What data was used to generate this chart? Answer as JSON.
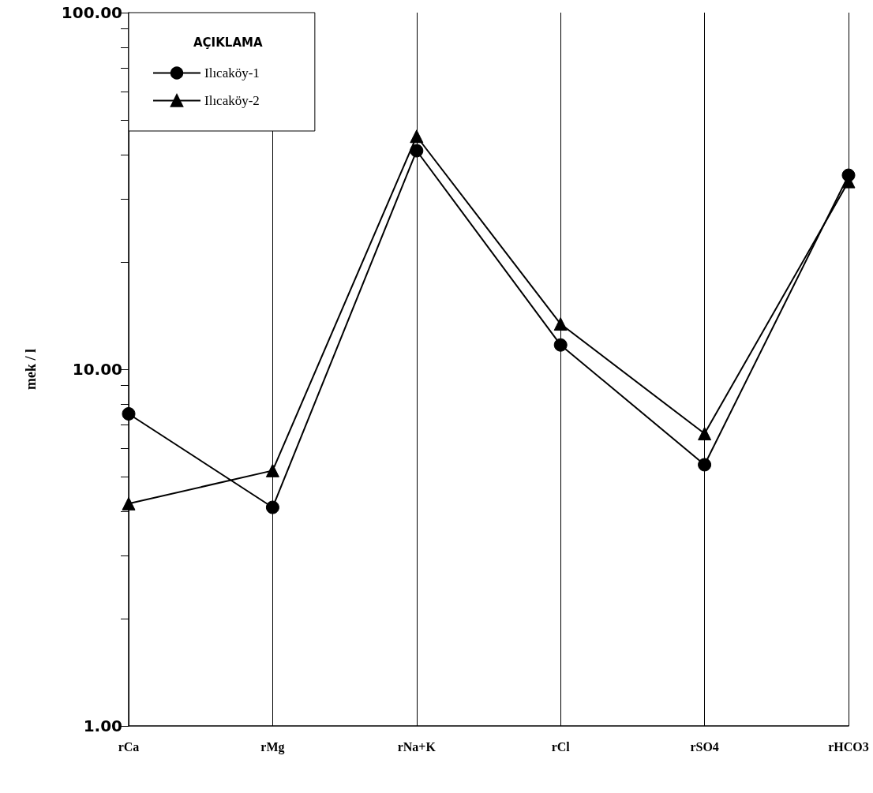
{
  "chart_data": {
    "type": "line",
    "ylabel": "mek / l",
    "legend_title": "AÇIKLAMA",
    "categories": [
      "rCa",
      "rMg",
      "rNa+K",
      "rCl",
      "rSO4",
      "rHCO3"
    ],
    "series": [
      {
        "name": "Ilıcaköy-1",
        "color": "#000000",
        "marker": "circle",
        "values": [
          7.5,
          4.1,
          41,
          11.7,
          5.4,
          35
        ]
      },
      {
        "name": "Ilıcaköy-2",
        "color": "#000000",
        "marker": "triangle",
        "values": [
          4.2,
          5.2,
          45,
          13.4,
          6.6,
          33.6
        ]
      }
    ],
    "log": "y",
    "ylim": [
      1,
      100
    ],
    "yticks": [
      {
        "value": 1,
        "label": "1.00"
      },
      {
        "value": 2,
        "label": null
      },
      {
        "value": 3,
        "label": null
      },
      {
        "value": 4,
        "label": null
      },
      {
        "value": 5,
        "label": null
      },
      {
        "value": 6,
        "label": null
      },
      {
        "value": 7,
        "label": null
      },
      {
        "value": 8,
        "label": null
      },
      {
        "value": 9,
        "label": null
      },
      {
        "value": 10,
        "label": "10.00"
      },
      {
        "value": 20,
        "label": null
      },
      {
        "value": 30,
        "label": null
      },
      {
        "value": 40,
        "label": null
      },
      {
        "value": 50,
        "label": null
      },
      {
        "value": 60,
        "label": null
      },
      {
        "value": 70,
        "label": null
      },
      {
        "value": 80,
        "label": null
      },
      {
        "value": 90,
        "label": null
      },
      {
        "value": 100,
        "label": "100.00"
      }
    ],
    "grid": "x",
    "legend": "top left",
    "line_style": "solid"
  }
}
